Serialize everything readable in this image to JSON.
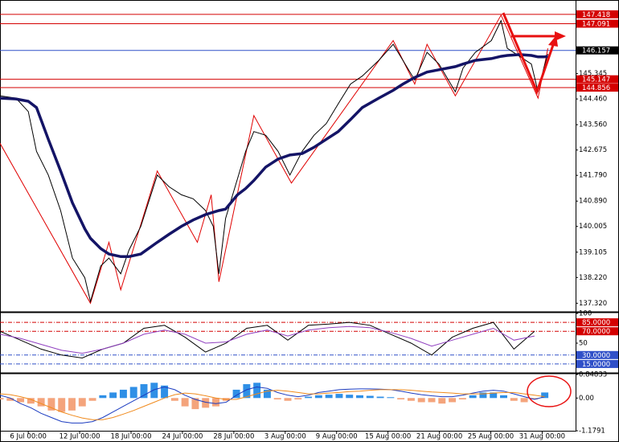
{
  "chart_data": [
    {
      "type": "line",
      "xlim": [
        0,
        112
      ],
      "ylim": [
        137.02,
        147.75
      ],
      "x": [
        0,
        3.1,
        5.5,
        7.1,
        9.4,
        11.8,
        14.1,
        16.5,
        17.6,
        19.6,
        21.2,
        23.5,
        25.1,
        27.4,
        30.6,
        32.9,
        35.3,
        37.6,
        40.0,
        41.5,
        42.6,
        43.9,
        46.2,
        47.8,
        49.4,
        51.7,
        54.1,
        56.4,
        58.8,
        61.1,
        63.5,
        65.8,
        68.2,
        70.5,
        73.7,
        76.5,
        78.4,
        80.7,
        83.1,
        85.4,
        88.6,
        90.1,
        92.5,
        95.6,
        97.5,
        98.7,
        101.1,
        103.4,
        104.7,
        105.8,
        106.6
      ],
      "series": [
        {
          "color": "#000000",
          "values": [
            144.57,
            144.49,
            144.02,
            142.63,
            141.8,
            140.56,
            138.9,
            138.21,
            137.38,
            138.62,
            138.9,
            138.35,
            139.18,
            140.01,
            141.8,
            141.39,
            141.11,
            140.97,
            140.56,
            140.01,
            138.35,
            140.28,
            141.67,
            142.63,
            143.32,
            143.19,
            142.63,
            141.8,
            142.63,
            143.19,
            143.6,
            144.29,
            144.98,
            145.26,
            145.81,
            146.37,
            145.81,
            145.12,
            146.09,
            145.68,
            144.71,
            145.54,
            146.09,
            146.5,
            147.2,
            146.23,
            145.95,
            145.68,
            144.71,
            145.54,
            146.03
          ]
        },
        {
          "color": "#141466",
          "values": [
            144.49,
            144.46,
            144.38,
            144.16,
            143.05,
            141.94,
            140.83,
            139.92,
            139.59,
            139.23,
            139.04,
            138.95,
            138.95,
            139.04,
            139.45,
            139.73,
            140.01,
            140.23,
            140.42,
            140.5,
            140.56,
            140.61,
            141.11,
            141.33,
            141.61,
            142.08,
            142.36,
            142.5,
            142.55,
            142.77,
            143.05,
            143.32,
            143.74,
            144.16,
            144.49,
            144.76,
            144.98,
            145.21,
            145.4,
            145.48,
            145.59,
            145.68,
            145.81,
            145.87,
            145.95,
            145.98,
            146.01,
            145.98,
            145.93,
            145.93,
            145.95
          ]
        }
      ],
      "zigzag": {
        "color": "#e00000",
        "x": [
          0,
          17.6,
          21.2,
          23.5,
          30.6,
          38.4,
          41.1,
          42.6,
          49.4,
          56.7,
          76.5,
          80.7,
          83.1,
          88.6,
          97.5,
          104.7,
          106.6
        ],
        "values": [
          142.91,
          137.32,
          139.45,
          137.79,
          141.94,
          139.45,
          141.11,
          138.07,
          143.88,
          141.52,
          146.5,
          144.98,
          146.37,
          144.57,
          147.39,
          144.49,
          146.23
        ]
      },
      "levels": [
        {
          "value": 147.418,
          "color": "#d40000"
        },
        {
          "value": 147.091,
          "color": "#d40000"
        },
        {
          "value": 145.147,
          "color": "#d40000"
        },
        {
          "value": 144.856,
          "color": "#d40000"
        }
      ],
      "last_price": {
        "value": 146.157,
        "color": "#3050c8"
      },
      "yticks": [
        145.345,
        {
          "value": 144.46,
          "label": "144.460"
        },
        {
          "value": 143.56,
          "label": "143.560"
        },
        142.675,
        {
          "value": 141.79,
          "label": "141.790"
        },
        {
          "value": 140.89,
          "label": "140.890"
        },
        140.005,
        139.105,
        {
          "value": 138.22,
          "label": "138.220"
        },
        {
          "value": 137.32,
          "label": "137.320"
        }
      ]
    },
    {
      "type": "line",
      "xlim": [
        0,
        112
      ],
      "ylim": [
        0,
        100
      ],
      "x": [
        0,
        4,
        8,
        12,
        16,
        20,
        24,
        28,
        32,
        36,
        40,
        44,
        48,
        52,
        56,
        60,
        64,
        68,
        72,
        76,
        80,
        84,
        88,
        92,
        96,
        100,
        104
      ],
      "series": [
        {
          "color": "#000000",
          "values": [
            70,
            55,
            40,
            30,
            25,
            40,
            50,
            75,
            80,
            60,
            35,
            50,
            75,
            80,
            55,
            80,
            82,
            85,
            80,
            65,
            50,
            30,
            60,
            75,
            85,
            40,
            70
          ]
        },
        {
          "color": "#9040c0",
          "values": [
            65,
            58,
            48,
            38,
            33,
            40,
            50,
            65,
            72,
            65,
            50,
            52,
            65,
            72,
            62,
            72,
            76,
            78,
            76,
            68,
            58,
            45,
            55,
            65,
            75,
            55,
            62
          ]
        }
      ],
      "levels": [
        {
          "value": 85,
          "label": "85.0000",
          "color": "#d40000"
        },
        {
          "value": 70,
          "label": "70.0000",
          "color": "#d40000"
        },
        {
          "value": 30,
          "label": "30.0000",
          "color": "#3050c8"
        },
        {
          "value": 15,
          "label": "15.0000",
          "color": "#3050c8"
        }
      ],
      "yticks": [
        100,
        50
      ]
    },
    {
      "type": "bar",
      "xlim": [
        0,
        112
      ],
      "ylim": [
        -1.1791,
        0.84833
      ],
      "x": [
        0,
        2,
        4,
        6,
        8,
        10,
        12,
        14,
        16,
        18,
        20,
        22,
        24,
        26,
        28,
        30,
        32,
        34,
        36,
        38,
        40,
        42,
        44,
        46,
        48,
        50,
        52,
        54,
        56,
        58,
        60,
        62,
        64,
        66,
        68,
        70,
        72,
        74,
        76,
        78,
        80,
        82,
        84,
        86,
        88,
        90,
        92,
        94,
        96,
        98,
        100,
        102,
        104,
        106
      ],
      "series": [
        {
          "type": "bar",
          "up_color": "#2f8fe6",
          "down_color": "#f4a47c",
          "values": [
            -0.05,
            -0.1,
            -0.15,
            -0.2,
            -0.3,
            -0.45,
            -0.5,
            -0.45,
            -0.3,
            -0.1,
            0.1,
            0.2,
            0.3,
            0.4,
            0.5,
            0.55,
            0.45,
            -0.1,
            -0.3,
            -0.4,
            -0.35,
            -0.3,
            -0.1,
            0.3,
            0.5,
            0.55,
            0.3,
            -0.05,
            -0.1,
            -0.05,
            0.05,
            0.1,
            0.12,
            0.15,
            0.12,
            0.1,
            0.08,
            0.05,
            0.03,
            -0.05,
            -0.1,
            -0.15,
            -0.15,
            -0.2,
            -0.15,
            -0.05,
            0.1,
            0.2,
            0.2,
            0.1,
            -0.1,
            -0.15,
            -0.05,
            0.2
          ]
        },
        {
          "type": "line",
          "color": "#1c3cc0",
          "values": [
            0.1,
            0.0,
            -0.2,
            -0.35,
            -0.55,
            -0.7,
            -0.85,
            -0.9,
            -0.9,
            -0.85,
            -0.7,
            -0.5,
            -0.3,
            -0.1,
            0.1,
            0.3,
            0.4,
            0.3,
            0.1,
            -0.05,
            -0.15,
            -0.2,
            -0.15,
            0.1,
            0.3,
            0.4,
            0.35,
            0.2,
            0.1,
            0.05,
            0.1,
            0.2,
            0.25,
            0.3,
            0.32,
            0.33,
            0.33,
            0.32,
            0.3,
            0.25,
            0.18,
            0.12,
            0.08,
            0.05,
            0.05,
            0.1,
            0.18,
            0.25,
            0.28,
            0.25,
            0.15,
            0.05,
            -0.05,
            0.05
          ]
        },
        {
          "type": "line",
          "color": "#f08a1c",
          "values": [
            0.15,
            0.12,
            0.05,
            -0.05,
            -0.2,
            -0.35,
            -0.5,
            -0.62,
            -0.72,
            -0.78,
            -0.78,
            -0.7,
            -0.58,
            -0.45,
            -0.3,
            -0.15,
            0.0,
            0.12,
            0.18,
            0.15,
            0.08,
            0.0,
            -0.05,
            -0.05,
            0.05,
            0.15,
            0.25,
            0.28,
            0.25,
            0.2,
            0.15,
            0.15,
            0.18,
            0.2,
            0.23,
            0.25,
            0.28,
            0.3,
            0.3,
            0.3,
            0.28,
            0.25,
            0.22,
            0.2,
            0.18,
            0.15,
            0.15,
            0.15,
            0.18,
            0.2,
            0.2,
            0.15,
            0.1,
            0.05
          ]
        }
      ],
      "yticks": [
        0.84833,
        {
          "value": 0,
          "label": "0.00"
        },
        -1.1791
      ],
      "xticks": [
        {
          "value": 5.5,
          "label": "6 Jul 00:00"
        },
        {
          "value": 15.5,
          "label": "12 Jul 00:00"
        },
        {
          "value": 25.5,
          "label": "18 Jul 00:00"
        },
        {
          "value": 35.5,
          "label": "24 Jul 00:00"
        },
        {
          "value": 45.5,
          "label": "28 Jul 00:00"
        },
        {
          "value": 55.5,
          "label": "3 Aug 00:00"
        },
        {
          "value": 65.5,
          "label": "9 Aug 00:00"
        },
        {
          "value": 75.5,
          "label": "15 Aug 00:00"
        },
        {
          "value": 85.5,
          "label": "21 Aug 00:00"
        },
        {
          "value": 95.5,
          "label": "25 Aug 00:00"
        },
        {
          "value": 105.5,
          "label": "31 Aug 00:00"
        }
      ]
    }
  ]
}
